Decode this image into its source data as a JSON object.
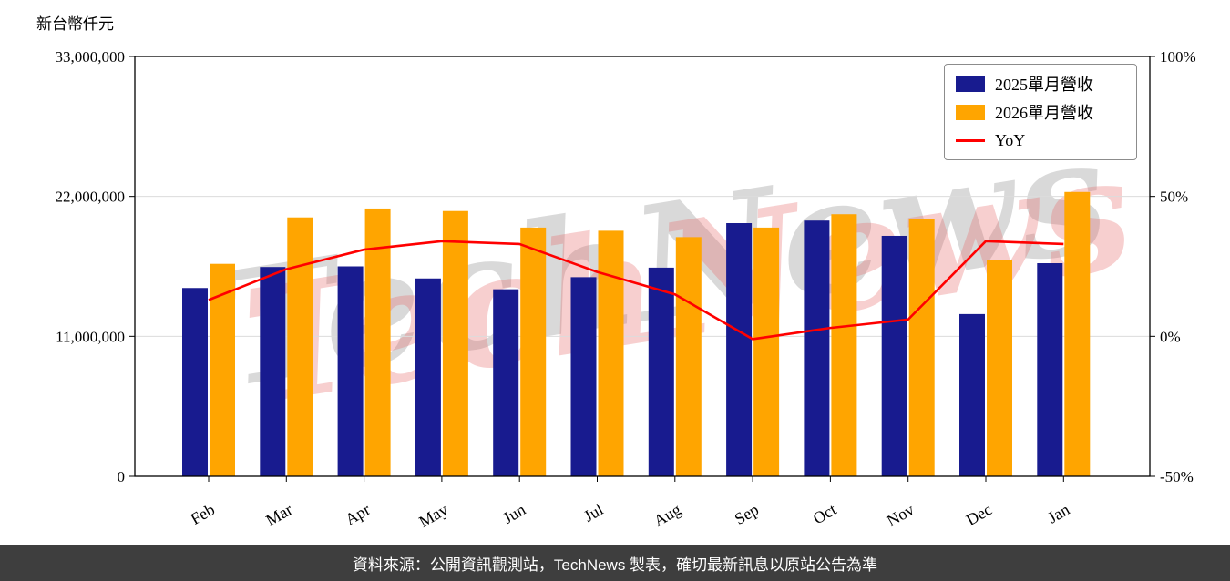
{
  "chart_data": {
    "type": "bar+line",
    "title": "",
    "categories": [
      "Feb",
      "Mar",
      "Apr",
      "May",
      "Jun",
      "Jul",
      "Aug",
      "Sep",
      "Oct",
      "Nov",
      "Dec",
      "Jan"
    ],
    "series": [
      {
        "name": "2025單月營收",
        "type": "bar",
        "axis": "left",
        "color": "#181b8f",
        "values": [
          14800000,
          16450000,
          16500000,
          15550000,
          14700000,
          15650000,
          16400000,
          19900000,
          20100000,
          18900000,
          12750000,
          16750000
        ]
      },
      {
        "name": "2026單月營收",
        "type": "bar",
        "axis": "left",
        "color": "#ffa500",
        "values": [
          16700000,
          20350000,
          21050000,
          20850000,
          19550000,
          19300000,
          18800000,
          19550000,
          20600000,
          20200000,
          17000000,
          22350000
        ]
      },
      {
        "name": "YoY",
        "type": "line",
        "axis": "right",
        "color": "#ff0000",
        "values": [
          13,
          24,
          31,
          34,
          33,
          23,
          15,
          -1,
          3,
          6,
          34,
          33
        ]
      }
    ],
    "left_axis": {
      "title": "新台幣仟元",
      "min": 0,
      "max": 33000000,
      "tick_values": [
        33000000,
        22000000,
        11000000,
        0
      ],
      "tick_labels": [
        "33,000,000",
        "22,000,000",
        "11,000,000",
        "0"
      ]
    },
    "right_axis": {
      "min": -50,
      "max": 100,
      "tick_values": [
        100,
        50,
        0,
        -50
      ],
      "tick_labels": [
        "100%",
        "50%",
        "0%",
        "-50%"
      ]
    },
    "legend": {
      "position": "top-right"
    },
    "grid": "horizontal",
    "watermark": "TechNews",
    "footer": "資料來源：公開資訊觀測站，TechNews 製表，確切最新訊息以原站公告為準"
  }
}
